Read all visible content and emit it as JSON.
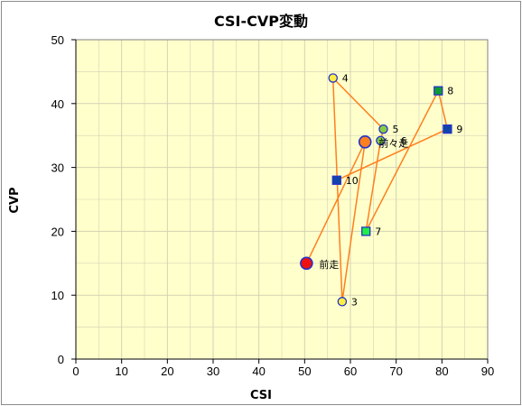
{
  "chart_data": {
    "type": "scatter",
    "title": "CSI-CVP変動",
    "xlabel": "CSI",
    "ylabel": "CVP",
    "xlim": [
      0,
      90
    ],
    "ylim": [
      0,
      50
    ],
    "xticks": [
      "0",
      "10",
      "20",
      "30",
      "40",
      "50",
      "60",
      "70",
      "80",
      "90"
    ],
    "yticks": [
      "0",
      "10",
      "20",
      "30",
      "40",
      "50"
    ],
    "grid": true,
    "colors": {
      "plot_background": "#ffffcc",
      "grid": "#d2d2b4",
      "line": "#ff7f1e",
      "marker_edge": "#2233cc"
    },
    "path_order": [
      "前走",
      "前々走",
      "3",
      "4",
      "5",
      "6",
      "7",
      "8",
      "9",
      "10"
    ],
    "points": [
      {
        "label": "前走",
        "x": 50.4,
        "y": 15.0,
        "marker": "circle-large",
        "fill": "#ee1111"
      },
      {
        "label": "前々走",
        "x": 63.2,
        "y": 34.0,
        "marker": "circle-large",
        "fill": "#ff7f1e"
      },
      {
        "label": "3",
        "x": 58.2,
        "y": 9.0,
        "marker": "circle",
        "fill": "#ffee44"
      },
      {
        "label": "4",
        "x": 56.2,
        "y": 44.0,
        "marker": "circle",
        "fill": "#ffee44"
      },
      {
        "label": "5",
        "x": 67.2,
        "y": 36.0,
        "marker": "circle",
        "fill": "#88cc44"
      },
      {
        "label": "6",
        "x": 66.6,
        "y": 34.2,
        "marker": "circle",
        "fill": "#88cc44"
      },
      {
        "label": "7",
        "x": 63.4,
        "y": 20.0,
        "marker": "square",
        "fill": "#22ee44"
      },
      {
        "label": "8",
        "x": 79.2,
        "y": 42.0,
        "marker": "square",
        "fill": "#119933"
      },
      {
        "label": "9",
        "x": 81.2,
        "y": 36.0,
        "marker": "square",
        "fill": "#1144aa"
      },
      {
        "label": "10",
        "x": 57.0,
        "y": 28.0,
        "marker": "square",
        "fill": "#1144aa"
      }
    ]
  }
}
